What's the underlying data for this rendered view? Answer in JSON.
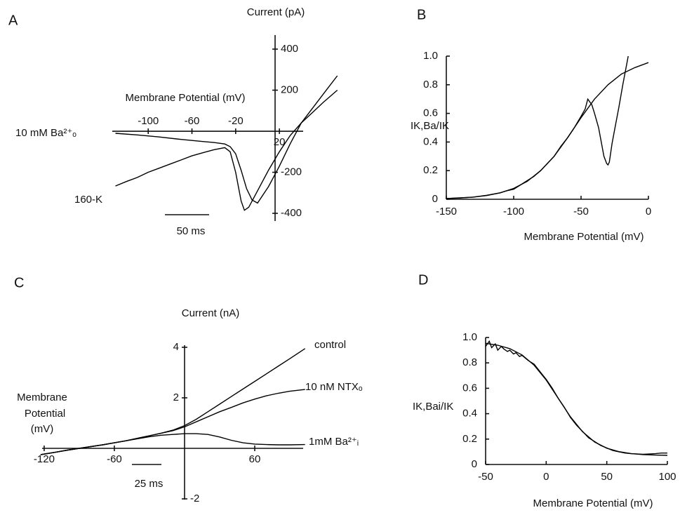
{
  "chart_data": [
    {
      "type": "line",
      "panel": "A",
      "ylabel": "Current (pA)",
      "xlabel": "Membrane Potential (mV)",
      "xlim": [
        -130,
        75
      ],
      "ylim": [
        -420,
        480
      ],
      "xticks": [
        -100,
        -60,
        -20,
        20
      ],
      "yticks": [
        -400,
        -200,
        200,
        400
      ],
      "series": [
        {
          "name": "10 mM Ba²⁺ₒ",
          "color": "#000000",
          "x": [
            -130,
            -110,
            -90,
            -70,
            -50,
            -40,
            -30,
            -25,
            -20,
            -15,
            -10,
            -5,
            0,
            10,
            20,
            30,
            40,
            50,
            60,
            73
          ],
          "values": [
            -10,
            -18,
            -28,
            -40,
            -50,
            -55,
            -62,
            -75,
            -110,
            -190,
            -280,
            -335,
            -350,
            -270,
            -170,
            -60,
            40,
            110,
            180,
            270
          ]
        },
        {
          "name": "160-K",
          "color": "#000000",
          "x": [
            -130,
            -120,
            -110,
            -100,
            -90,
            -80,
            -70,
            -60,
            -50,
            -40,
            -30,
            -25,
            -20,
            -15,
            -12,
            -8,
            0,
            10,
            20,
            30,
            40,
            50,
            60,
            73
          ],
          "values": [
            -267,
            -245,
            -225,
            -200,
            -180,
            -160,
            -140,
            -120,
            -105,
            -90,
            -80,
            -100,
            -200,
            -340,
            -385,
            -370,
            -290,
            -190,
            -100,
            -20,
            40,
            90,
            140,
            200
          ]
        }
      ],
      "annotations": [
        "50 ms"
      ]
    },
    {
      "type": "line",
      "panel": "B",
      "ylabel": "IK,Ba/IK",
      "xlabel": "Membrane Potential (mV)",
      "xlim": [
        -150,
        0
      ],
      "ylim": [
        0,
        1
      ],
      "xticks": [
        -150,
        -100,
        -50,
        0
      ],
      "yticks": [
        0,
        0.2,
        0.4,
        0.6,
        0.8,
        {
          "value": 1,
          "label": "1.0"
        }
      ],
      "series": [
        {
          "color": "#000000",
          "x": [
            -150,
            -140,
            -130,
            -120,
            -110,
            -100,
            -90,
            -80,
            -70,
            -60,
            -50,
            -40,
            -30,
            -20,
            -10,
            0
          ],
          "values": [
            0.005,
            0.009,
            0.015,
            0.026,
            0.045,
            0.076,
            0.125,
            0.2,
            0.3,
            0.43,
            0.57,
            0.7,
            0.8,
            0.875,
            0.92,
            0.955
          ]
        },
        {
          "color": "#000000",
          "x": [
            -150,
            -140,
            -130,
            -120,
            -110,
            -105,
            -100,
            -95,
            -90,
            -85,
            -80,
            -75,
            -70,
            -65,
            -60,
            -55,
            -50,
            -47,
            -45,
            -42,
            -40,
            -37,
            -35,
            -33,
            -31,
            -30,
            -29,
            -27,
            -25,
            -22,
            -19,
            -16,
            -15
          ],
          "values": [
            0.005,
            0.01,
            0.015,
            0.028,
            0.045,
            0.06,
            0.07,
            0.1,
            0.13,
            0.16,
            0.2,
            0.25,
            0.3,
            0.37,
            0.43,
            0.5,
            0.58,
            0.63,
            0.7,
            0.66,
            0.6,
            0.5,
            0.4,
            0.3,
            0.25,
            0.24,
            0.26,
            0.39,
            0.49,
            0.64,
            0.8,
            0.95,
            1.0
          ]
        }
      ]
    },
    {
      "type": "line",
      "panel": "C",
      "ylabel": "Current (nA)",
      "xlabel": [
        "Membrane",
        "Potential",
        "(mV)"
      ],
      "xlim": [
        -125,
        105
      ],
      "ylim": [
        -2.1,
        4.2
      ],
      "xticks": [
        -120,
        -60,
        60
      ],
      "yticks": [
        -2,
        2,
        4
      ],
      "series": [
        {
          "name": "control",
          "color": "#000000",
          "x": [
            -123,
            -110,
            -100,
            -90,
            -80,
            -70,
            -60,
            -50,
            -40,
            -30,
            -20,
            -10,
            0,
            10,
            20,
            30,
            40,
            50,
            60,
            70,
            80,
            90,
            103
          ],
          "values": [
            -0.25,
            -0.15,
            -0.07,
            0,
            0.07,
            0.14,
            0.22,
            0.3,
            0.4,
            0.5,
            0.6,
            0.72,
            0.9,
            1.15,
            1.45,
            1.75,
            2.05,
            2.35,
            2.65,
            2.95,
            3.25,
            3.55,
            3.95
          ]
        },
        {
          "name": "10 nM NTXₒ",
          "color": "#000000",
          "x": [
            -123,
            -110,
            -100,
            -90,
            -80,
            -70,
            -60,
            -50,
            -40,
            -30,
            -20,
            -10,
            0,
            10,
            20,
            30,
            40,
            50,
            60,
            70,
            80,
            90,
            103
          ],
          "values": [
            -0.25,
            -0.15,
            -0.07,
            0,
            0.07,
            0.14,
            0.22,
            0.3,
            0.4,
            0.5,
            0.6,
            0.7,
            0.85,
            1.05,
            1.25,
            1.45,
            1.62,
            1.8,
            1.95,
            2.08,
            2.18,
            2.26,
            2.33
          ]
        },
        {
          "name": "1mM Ba²⁺ᵢ",
          "color": "#000000",
          "x": [
            -123,
            -110,
            -100,
            -90,
            -80,
            -70,
            -60,
            -50,
            -40,
            -30,
            -20,
            -10,
            0,
            10,
            20,
            30,
            40,
            50,
            60,
            70,
            80,
            90,
            103
          ],
          "values": [
            -0.25,
            -0.15,
            -0.07,
            0,
            0.07,
            0.14,
            0.22,
            0.3,
            0.38,
            0.46,
            0.52,
            0.55,
            0.58,
            0.58,
            0.55,
            0.45,
            0.32,
            0.22,
            0.17,
            0.15,
            0.14,
            0.14,
            0.15
          ]
        }
      ],
      "annotations": [
        "25 ms"
      ]
    },
    {
      "type": "line",
      "panel": "D",
      "ylabel": "IK,Bai/IK",
      "xlabel": "Membrane Potential (mV)",
      "xlim": [
        -50,
        100
      ],
      "ylim": [
        0,
        1
      ],
      "xticks": [
        -50,
        0,
        50,
        100
      ],
      "yticks": [
        0,
        0.2,
        0.4,
        0.6,
        0.8,
        {
          "value": 1,
          "label": "1.0"
        }
      ],
      "series": [
        {
          "color": "#000000",
          "x": [
            -50,
            -40,
            -30,
            -20,
            -10,
            0,
            10,
            20,
            30,
            40,
            50,
            60,
            70,
            80,
            90,
            100
          ],
          "values": [
            0.954,
            0.939,
            0.912,
            0.863,
            0.782,
            0.665,
            0.52,
            0.375,
            0.258,
            0.177,
            0.128,
            0.101,
            0.086,
            0.078,
            0.074,
            0.072
          ]
        },
        {
          "color": "#000000",
          "x": [
            -50,
            -47,
            -45,
            -42,
            -40,
            -37,
            -35,
            -32,
            -30,
            -27,
            -25,
            -22,
            -20,
            -15,
            -10,
            -5,
            0,
            5,
            10,
            15,
            20,
            25,
            30,
            35,
            40,
            45,
            50,
            55,
            60,
            65,
            70,
            80,
            90,
            95,
            100
          ],
          "values": [
            0.93,
            0.97,
            0.92,
            0.95,
            0.9,
            0.93,
            0.91,
            0.89,
            0.9,
            0.87,
            0.88,
            0.85,
            0.86,
            0.82,
            0.79,
            0.73,
            0.67,
            0.6,
            0.52,
            0.45,
            0.37,
            0.31,
            0.26,
            0.21,
            0.18,
            0.15,
            0.13,
            0.11,
            0.1,
            0.09,
            0.085,
            0.08,
            0.085,
            0.09,
            0.09
          ]
        }
      ]
    }
  ]
}
